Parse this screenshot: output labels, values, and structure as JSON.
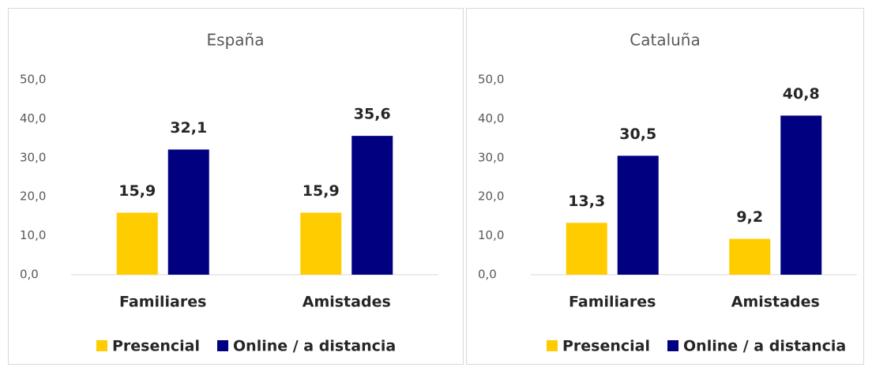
{
  "chart_data": [
    {
      "type": "bar",
      "title": "España",
      "categories": [
        "Familiares",
        "Amistades"
      ],
      "series": [
        {
          "name": "Presencial",
          "color": "#FFCC00",
          "values": [
            15.9,
            15.9
          ],
          "value_labels": [
            "15,9",
            "15,9"
          ]
        },
        {
          "name": "Online / a distancia",
          "color": "#000080",
          "values": [
            32.1,
            35.6
          ],
          "value_labels": [
            "32,1",
            "35,6"
          ]
        }
      ],
      "ylim": [
        0,
        50
      ],
      "yticks": [
        {
          "value": 0,
          "label": "0,0"
        },
        {
          "value": 10,
          "label": "10,0"
        },
        {
          "value": 20,
          "label": "20,0"
        },
        {
          "value": 30,
          "label": "30,0"
        },
        {
          "value": 40,
          "label": "40,0"
        },
        {
          "value": 50,
          "label": "50,0"
        }
      ],
      "legend": "bottom"
    },
    {
      "type": "bar",
      "title": "Cataluña",
      "categories": [
        "Familiares",
        "Amistades"
      ],
      "series": [
        {
          "name": "Presencial",
          "color": "#FFCC00",
          "values": [
            13.3,
            9.2
          ],
          "value_labels": [
            "13,3",
            "9,2"
          ]
        },
        {
          "name": "Online / a distancia",
          "color": "#000080",
          "values": [
            30.5,
            40.8
          ],
          "value_labels": [
            "30,5",
            "40,8"
          ]
        }
      ],
      "ylim": [
        0,
        50
      ],
      "yticks": [
        {
          "value": 0,
          "label": "0,0"
        },
        {
          "value": 10,
          "label": "10,0"
        },
        {
          "value": 20,
          "label": "20,0"
        },
        {
          "value": 30,
          "label": "30,0"
        },
        {
          "value": 40,
          "label": "40,0"
        },
        {
          "value": 50,
          "label": "50,0"
        }
      ],
      "legend": "bottom"
    }
  ]
}
